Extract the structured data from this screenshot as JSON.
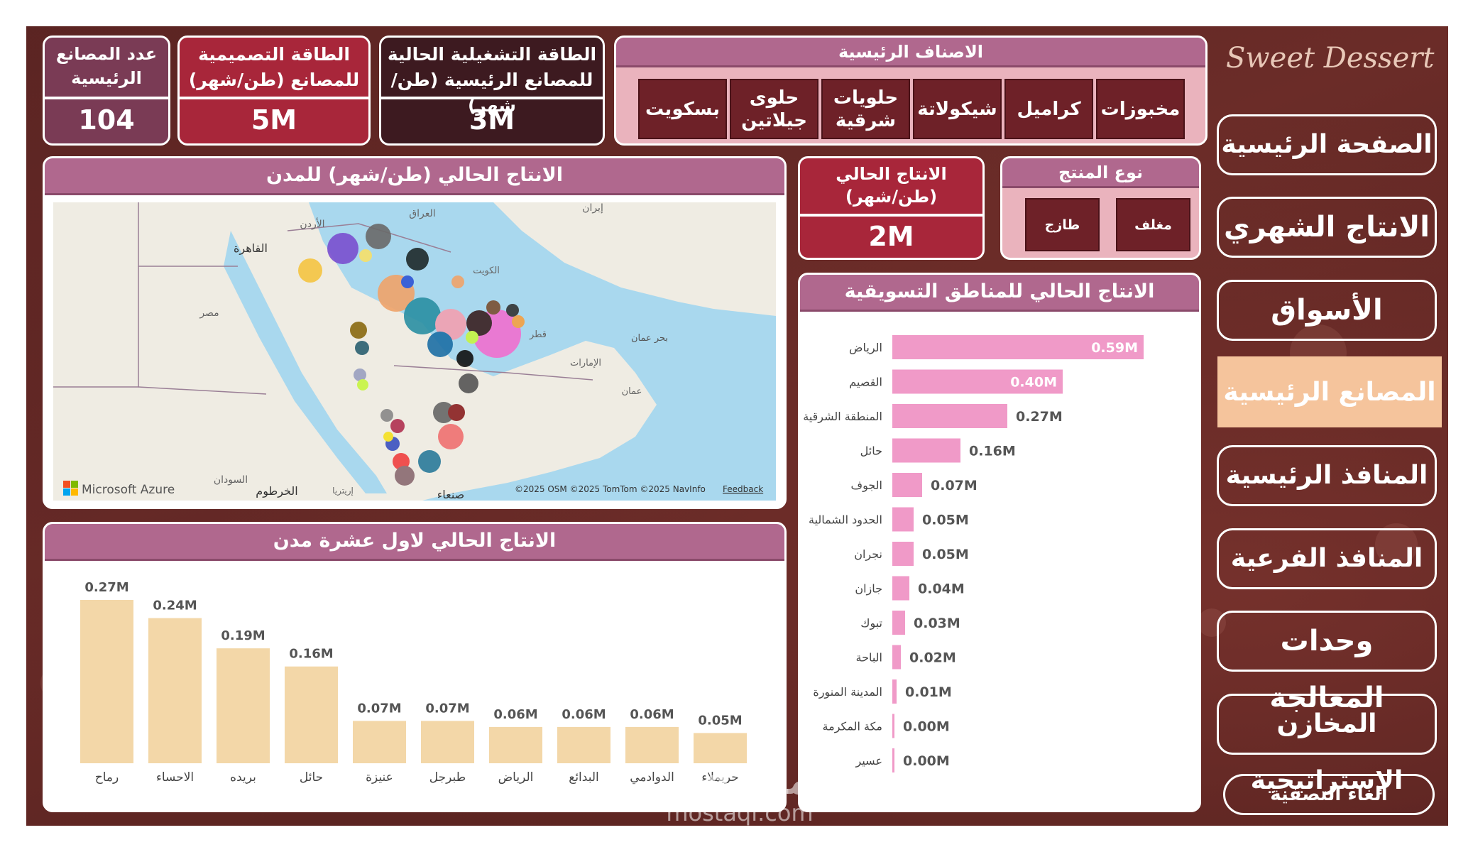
{
  "brand": "Sweet Dessert",
  "kpis": {
    "factories": {
      "label_1": "عدد المصانع",
      "label_2": "الرئيسية",
      "value": "104"
    },
    "design_capacity": {
      "label_1": "الطاقة التصميمية",
      "label_2": "للمصانع (طن/شهر)",
      "value": "5M"
    },
    "operating_capacity": {
      "label_1": "الطاقة التشغيلية الحالية",
      "label_2": "للمصانع الرئيسية (طن/شهر)",
      "value": "3M"
    },
    "current_production": {
      "label_1": "الانتاج الحالي",
      "label_2": "(طن/شهر)",
      "value": "2M"
    }
  },
  "categories": {
    "title": "الاصناف الرئيسية",
    "items": [
      {
        "l1": "مخبوزات",
        "l2": ""
      },
      {
        "l1": "كراميل",
        "l2": ""
      },
      {
        "l1": "شيكولاتة",
        "l2": ""
      },
      {
        "l1": "حلويات",
        "l2": "شرقية"
      },
      {
        "l1": "حلوى",
        "l2": "جيلاتين"
      },
      {
        "l1": "بسكويت",
        "l2": ""
      }
    ]
  },
  "product_type": {
    "title": "نوع المنتج",
    "options": [
      "مغلف",
      "طازج"
    ]
  },
  "map_panel": {
    "title": "الانتاج الحالي (طن/شهر) للمدن",
    "labels": {
      "cairo": "القاهرة",
      "jordan": "الأردن",
      "iraq": "العراق",
      "iran": "إيران",
      "egypt": "مصر",
      "kuwait": "الكويت",
      "qatar": "قطر",
      "uae": "الإمارات",
      "gulf_oman": "بحر عمان",
      "oman": "عمان",
      "sudan": "السودان",
      "khartoum": "الخرطوم",
      "eritrea": "إريتريا",
      "sanaa": "صنعاء"
    },
    "azure": "Microsoft Azure",
    "copyright": "©2025 OSM  ©2025 TomTom  ©2025 NavInfo",
    "feedback": "Feedback"
  },
  "chart_regions": {
    "title": "الانتاج الحالي للمناطق التسويقية",
    "type": "bar",
    "categories": [
      "الرياض",
      "القصيم",
      "المنطقة الشرقية",
      "حائل",
      "الجوف",
      "الحدود الشمالية",
      "نجران",
      "جازان",
      "تبوك",
      "الباحة",
      "المدينة المنورة",
      "مكة المكرمة",
      "عسير"
    ],
    "values": [
      0.59,
      0.4,
      0.27,
      0.16,
      0.07,
      0.05,
      0.05,
      0.04,
      0.03,
      0.02,
      0.01,
      0.004,
      0.002
    ],
    "labels": [
      "0.59M",
      "0.40M",
      "0.27M",
      "0.16M",
      "0.07M",
      "0.05M",
      "0.05M",
      "0.04M",
      "0.03M",
      "0.02M",
      "0.01M",
      "0.00M",
      "0.00M"
    ],
    "color": "#f09ac8"
  },
  "chart_cities": {
    "title": "الانتاج الحالي لاول عشرة مدن",
    "type": "bar",
    "categories": [
      "رماح",
      "الاحساء",
      "بريده",
      "حائل",
      "عنيزة",
      "طبرجل",
      "الرياض",
      "البدائع",
      "الدوادمي",
      "حريملاء"
    ],
    "values": [
      0.27,
      0.24,
      0.19,
      0.16,
      0.07,
      0.07,
      0.06,
      0.06,
      0.06,
      0.05
    ],
    "labels": [
      "0.27M",
      "0.24M",
      "0.19M",
      "0.16M",
      "0.07M",
      "0.07M",
      "0.06M",
      "0.06M",
      "0.06M",
      "0.05M"
    ],
    "color": "#f3d7a8"
  },
  "nav": {
    "items": [
      "الصفحة الرئيسية",
      "الانتاج الشهري",
      "الأسواق",
      "المصانع الرئيسية",
      "المنافذ الرئيسية",
      "المنافذ الفرعية",
      "وحدات المعالجة",
      "المخازن الإستراتيجية"
    ],
    "active_index": 3,
    "clear_filter": "الغاء التصفية"
  },
  "watermark": {
    "line1": "مستقل",
    "line2": "mostaql.com"
  },
  "colors": {
    "kpi1": "#7a3b55",
    "kpi2": "#a8263a",
    "kpi3": "#3d1a20",
    "kpi4": "#a8263a",
    "header": "#b0688e",
    "category_bg": "#eab3bd",
    "category_btn": "#6e2128",
    "nav_active": "#f5c49c"
  }
}
